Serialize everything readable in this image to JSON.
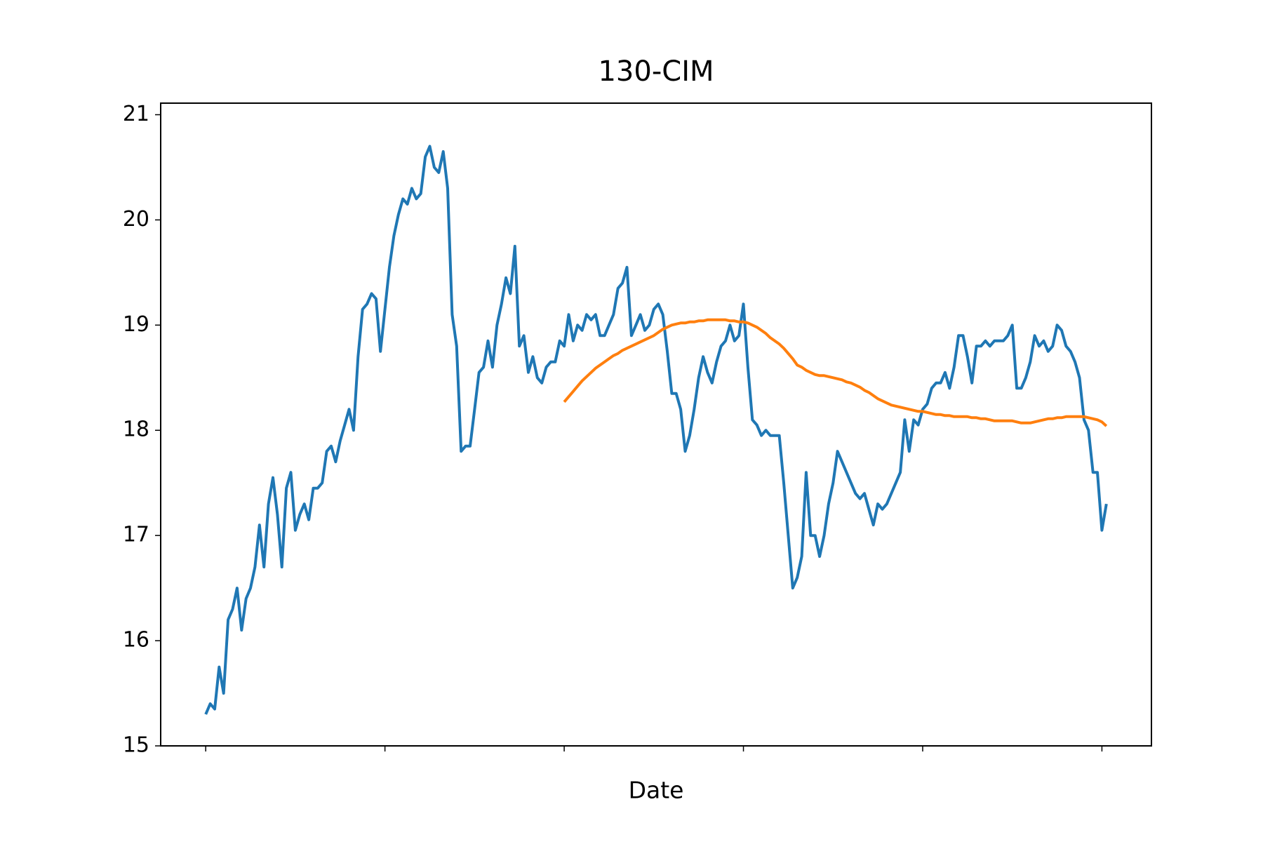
{
  "chart_data": {
    "type": "line",
    "title": "130-CIM",
    "x_label": "Date",
    "ylim": [
      15,
      21.11
    ],
    "yticks": [
      15,
      16,
      17,
      18,
      19,
      20,
      21
    ],
    "grid": false,
    "series": [
      {
        "color": "#1f77b4",
        "values": [
          15.3,
          15.4,
          15.35,
          15.75,
          15.5,
          16.2,
          16.3,
          16.5,
          16.1,
          16.4,
          16.5,
          16.7,
          17.1,
          16.7,
          17.3,
          17.55,
          17.2,
          16.7,
          17.45,
          17.6,
          17.05,
          17.2,
          17.3,
          17.15,
          17.45,
          17.45,
          17.5,
          17.8,
          17.85,
          17.7,
          17.9,
          18.05,
          18.2,
          18.0,
          18.7,
          19.15,
          19.2,
          19.3,
          19.25,
          18.75,
          19.15,
          19.55,
          19.85,
          20.05,
          20.2,
          20.15,
          20.3,
          20.2,
          20.25,
          20.6,
          20.7,
          20.5,
          20.45,
          20.65,
          20.3,
          19.1,
          18.8,
          17.8,
          17.85,
          17.85,
          18.2,
          18.55,
          18.6,
          18.85,
          18.6,
          19.0,
          19.2,
          19.45,
          19.3,
          19.75,
          18.8,
          18.9,
          18.55,
          18.7,
          18.5,
          18.45,
          18.6,
          18.65,
          18.65,
          18.85,
          18.8,
          19.1,
          18.85,
          19.0,
          18.95,
          19.1,
          19.05,
          19.1,
          18.9,
          18.9,
          19.0,
          19.1,
          19.35,
          19.4,
          19.55,
          18.9,
          19.0,
          19.1,
          18.95,
          19.0,
          19.15,
          19.2,
          19.1,
          18.75,
          18.35,
          18.35,
          18.2,
          17.8,
          17.95,
          18.2,
          18.5,
          18.7,
          18.55,
          18.45,
          18.65,
          18.8,
          18.85,
          19.0,
          18.85,
          18.9,
          19.2,
          18.6,
          18.1,
          18.05,
          17.95,
          18.0,
          17.95,
          17.95,
          17.95,
          17.5,
          17.0,
          16.5,
          16.6,
          16.8,
          17.6,
          17.0,
          17.0,
          16.8,
          17.0,
          17.3,
          17.5,
          17.8,
          17.7,
          17.6,
          17.5,
          17.4,
          17.35,
          17.4,
          17.25,
          17.1,
          17.3,
          17.25,
          17.3,
          17.4,
          17.5,
          17.6,
          18.1,
          17.8,
          18.1,
          18.05,
          18.2,
          18.25,
          18.4,
          18.45,
          18.45,
          18.55,
          18.4,
          18.6,
          18.9,
          18.9,
          18.7,
          18.45,
          18.8,
          18.8,
          18.85,
          18.8,
          18.85,
          18.85,
          18.85,
          18.9,
          19.0,
          18.4,
          18.4,
          18.5,
          18.65,
          18.9,
          18.8,
          18.85,
          18.75,
          18.8,
          19.0,
          18.95,
          18.8,
          18.75,
          18.65,
          18.5,
          18.1,
          18.0,
          17.6,
          17.6,
          17.05,
          17.3
        ]
      },
      {
        "color": "#ff7f0e",
        "values": [
          null,
          null,
          null,
          null,
          null,
          null,
          null,
          null,
          null,
          null,
          null,
          null,
          null,
          null,
          null,
          null,
          null,
          null,
          null,
          null,
          null,
          null,
          null,
          null,
          null,
          null,
          null,
          null,
          null,
          null,
          null,
          null,
          null,
          null,
          null,
          null,
          null,
          null,
          null,
          null,
          null,
          null,
          null,
          null,
          null,
          null,
          null,
          null,
          null,
          null,
          null,
          null,
          null,
          null,
          null,
          null,
          null,
          null,
          null,
          null,
          null,
          null,
          null,
          null,
          null,
          null,
          null,
          null,
          null,
          null,
          null,
          null,
          null,
          null,
          null,
          null,
          null,
          null,
          null,
          null,
          18.27,
          18.32,
          18.37,
          18.42,
          18.47,
          18.51,
          18.55,
          18.59,
          18.62,
          18.65,
          18.68,
          18.71,
          18.73,
          18.76,
          18.78,
          18.8,
          18.82,
          18.84,
          18.86,
          18.88,
          18.9,
          18.93,
          18.96,
          18.98,
          19.0,
          19.01,
          19.02,
          19.02,
          19.03,
          19.03,
          19.04,
          19.04,
          19.05,
          19.05,
          19.05,
          19.05,
          19.05,
          19.04,
          19.04,
          19.03,
          19.03,
          19.02,
          19.0,
          18.98,
          18.95,
          18.92,
          18.88,
          18.85,
          18.82,
          18.78,
          18.73,
          18.68,
          18.62,
          18.6,
          18.57,
          18.55,
          18.53,
          18.52,
          18.52,
          18.51,
          18.5,
          18.49,
          18.48,
          18.46,
          18.45,
          18.43,
          18.41,
          18.38,
          18.36,
          18.33,
          18.3,
          18.28,
          18.26,
          18.24,
          18.23,
          18.22,
          18.21,
          18.2,
          18.19,
          18.18,
          18.18,
          18.17,
          18.16,
          18.15,
          18.15,
          18.14,
          18.14,
          18.13,
          18.13,
          18.13,
          18.13,
          18.12,
          18.12,
          18.11,
          18.11,
          18.1,
          18.09,
          18.09,
          18.09,
          18.09,
          18.09,
          18.08,
          18.07,
          18.07,
          18.07,
          18.08,
          18.09,
          18.1,
          18.11,
          18.11,
          18.12,
          18.12,
          18.13,
          18.13,
          18.13,
          18.13,
          18.13,
          18.12,
          18.11,
          18.1,
          18.08,
          18.04
        ]
      }
    ]
  }
}
